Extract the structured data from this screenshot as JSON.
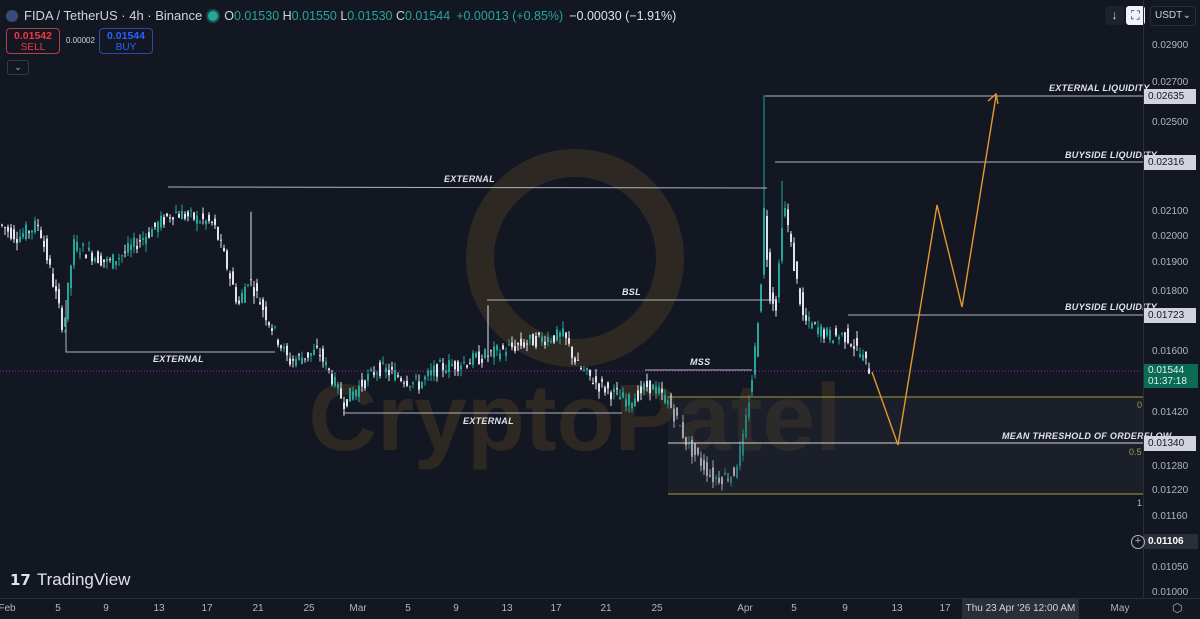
{
  "header": {
    "symbol": "FIDA / TetherUS · 4h · Binance",
    "open": "0.01530",
    "high": "0.01550",
    "low": "0.01530",
    "close": "0.01544",
    "change": "+0.00013 (+0.85%)",
    "change2": "−0.00030 (−1.91%)",
    "labels": {
      "o": "O",
      "h": "H",
      "l": "L",
      "c": "C"
    }
  },
  "trade": {
    "sell_price": "0.01542",
    "sell_label": "SELL",
    "spread": "0.00002",
    "buy_price": "0.01544",
    "buy_label": "BUY",
    "collapse": "⌄"
  },
  "toolbar": {
    "currency": "USDT",
    "down_icon": "↓",
    "fullscreen_icon": "⛶"
  },
  "price_axis": {
    "labels": [
      "0.02900",
      "0.02700",
      "0.02500",
      "0.02100",
      "0.02000",
      "0.01900",
      "0.01800",
      "0.01600",
      "0.01420",
      "0.01280",
      "0.01220",
      "0.01160",
      "0.01050",
      "0.01000"
    ],
    "tags": {
      "ext_liq": "0.02635",
      "bsl1": "0.02316",
      "bsl2": "0.01723",
      "mean": "0.01340",
      "crosshair": "0.01106"
    },
    "current_price": "0.01544",
    "countdown": "01:37:18"
  },
  "time_axis": {
    "labels": [
      "Feb",
      "5",
      "9",
      "13",
      "17",
      "21",
      "25",
      "Mar",
      "5",
      "9",
      "13",
      "17",
      "21",
      "25",
      "Apr",
      "5",
      "9",
      "13",
      "17",
      "May"
    ],
    "crosshair": "Thu 23 Apr '26   12:00 AM"
  },
  "annotations": {
    "external_top": "EXTERNAL",
    "external_left": "EXTERNAL",
    "external_low": "EXTERNAL",
    "bsl": "BSL",
    "mss": "MSS",
    "external_liquidity": "EXTERNAL LIQUIDITY",
    "buyside1": "BUYSIDE LIQUIDITY",
    "buyside2": "BUYSIDE LIQUIDITY",
    "mean_threshold": "MEAN THRESHOLD OF ORDERFLOW",
    "fib0": "0",
    "fib05": "0.5",
    "fib1": "1"
  },
  "watermark": "CryptoPatel",
  "logo": "TradingView",
  "colors": {
    "up": "#26a69a",
    "down": "#ef5350",
    "projection": "#e39a2d",
    "fib": "#a59a3e"
  }
}
